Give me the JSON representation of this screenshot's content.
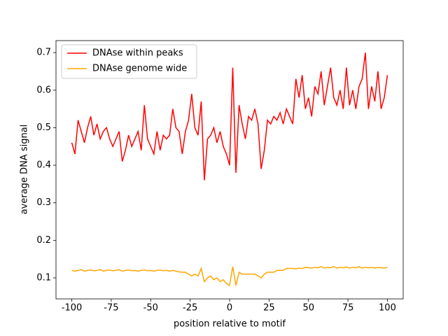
{
  "chart_data": {
    "type": "line",
    "xlabel": "position relative to motif",
    "ylabel": "average DNA signal",
    "x": [
      -100,
      -98,
      -96,
      -94,
      -92,
      -90,
      -88,
      -86,
      -84,
      -82,
      -80,
      -78,
      -76,
      -74,
      -72,
      -70,
      -68,
      -66,
      -64,
      -62,
      -60,
      -58,
      -56,
      -54,
      -52,
      -50,
      -48,
      -46,
      -44,
      -42,
      -40,
      -38,
      -36,
      -34,
      -32,
      -30,
      -28,
      -26,
      -24,
      -22,
      -20,
      -18,
      -16,
      -14,
      -12,
      -10,
      -8,
      -6,
      -4,
      -2,
      0,
      2,
      4,
      6,
      8,
      10,
      12,
      14,
      16,
      18,
      20,
      22,
      24,
      26,
      28,
      30,
      32,
      34,
      36,
      38,
      40,
      42,
      44,
      46,
      48,
      50,
      52,
      54,
      56,
      58,
      60,
      62,
      64,
      66,
      68,
      70,
      72,
      74,
      76,
      78,
      80,
      82,
      84,
      86,
      88,
      90,
      92,
      94,
      96,
      98,
      100
    ],
    "series": [
      {
        "name": "DNAse within peaks",
        "color": "#ff0000",
        "values": [
          0.46,
          0.43,
          0.52,
          0.49,
          0.46,
          0.5,
          0.53,
          0.48,
          0.51,
          0.47,
          0.49,
          0.5,
          0.47,
          0.45,
          0.47,
          0.49,
          0.41,
          0.44,
          0.48,
          0.45,
          0.47,
          0.49,
          0.44,
          0.56,
          0.47,
          0.45,
          0.43,
          0.49,
          0.44,
          0.48,
          0.47,
          0.48,
          0.55,
          0.5,
          0.49,
          0.43,
          0.49,
          0.52,
          0.59,
          0.5,
          0.48,
          0.57,
          0.36,
          0.47,
          0.48,
          0.5,
          0.46,
          0.49,
          0.45,
          0.43,
          0.4,
          0.66,
          0.38,
          0.56,
          0.51,
          0.47,
          0.53,
          0.52,
          0.55,
          0.51,
          0.39,
          0.44,
          0.52,
          0.51,
          0.53,
          0.52,
          0.54,
          0.51,
          0.55,
          0.53,
          0.51,
          0.63,
          0.58,
          0.64,
          0.55,
          0.58,
          0.53,
          0.61,
          0.59,
          0.65,
          0.56,
          0.61,
          0.66,
          0.58,
          0.56,
          0.6,
          0.55,
          0.66,
          0.56,
          0.6,
          0.55,
          0.61,
          0.63,
          0.7,
          0.55,
          0.61,
          0.57,
          0.65,
          0.55,
          0.58,
          0.64
        ]
      },
      {
        "name": "DNAse genome wide",
        "color": "#ffa500",
        "values": [
          0.12,
          0.118,
          0.12,
          0.122,
          0.118,
          0.12,
          0.121,
          0.119,
          0.12,
          0.122,
          0.118,
          0.12,
          0.121,
          0.119,
          0.12,
          0.122,
          0.118,
          0.12,
          0.121,
          0.119,
          0.12,
          0.118,
          0.12,
          0.121,
          0.119,
          0.12,
          0.118,
          0.12,
          0.121,
          0.119,
          0.12,
          0.118,
          0.12,
          0.118,
          0.116,
          0.115,
          0.115,
          0.11,
          0.105,
          0.11,
          0.105,
          0.125,
          0.09,
          0.1,
          0.105,
          0.095,
          0.1,
          0.09,
          0.095,
          0.085,
          0.08,
          0.13,
          0.08,
          0.115,
          0.11,
          0.11,
          0.11,
          0.11,
          0.11,
          0.105,
          0.1,
          0.11,
          0.115,
          0.115,
          0.115,
          0.12,
          0.12,
          0.12,
          0.125,
          0.125,
          0.125,
          0.124,
          0.126,
          0.125,
          0.128,
          0.127,
          0.126,
          0.128,
          0.127,
          0.13,
          0.126,
          0.128,
          0.127,
          0.13,
          0.126,
          0.128,
          0.127,
          0.129,
          0.126,
          0.128,
          0.127,
          0.13,
          0.126,
          0.128,
          0.127,
          0.128,
          0.126,
          0.128,
          0.127,
          0.126,
          0.128
        ]
      }
    ],
    "xlim": [
      -110,
      110
    ],
    "ylim": [
      0.044,
      0.732
    ],
    "xticks": [
      -100,
      -75,
      -50,
      -25,
      0,
      25,
      50,
      75,
      100
    ],
    "yticks": [
      0.1,
      0.2,
      0.3,
      0.4,
      0.5,
      0.6,
      0.7
    ],
    "legend": "upper left",
    "grid": false
  }
}
